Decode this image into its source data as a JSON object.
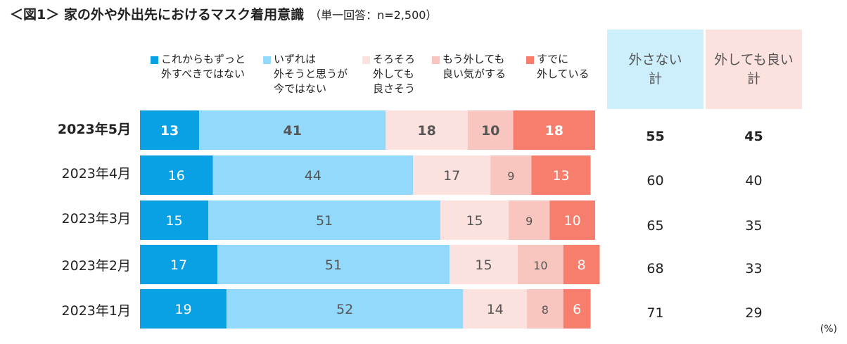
{
  "title": "＜図1＞ 家の外や外出先におけるマスク着用意識",
  "subtitle": "（単一回答：n=2,500）",
  "unit": "(%)",
  "colors": [
    "#0AA0E4",
    "#93D9FB",
    "#FCE2DF",
    "#F8C6BE",
    "#F77E6D"
  ],
  "summary_headers": [
    {
      "label": "外さない\n計",
      "color": "#CDEEFB"
    },
    {
      "label": "外しても良い\n計",
      "color": "#FCE2DF"
    }
  ],
  "chart_data": {
    "type": "bar",
    "orientation": "horizontal-stacked-100",
    "title": "家の外や外出先におけるマスク着用意識",
    "categories": [
      "2023年5月",
      "2023年4月",
      "2023年3月",
      "2023年2月",
      "2023年1月"
    ],
    "highlight_category": "2023年5月",
    "series": [
      {
        "name": "これからもずっと\n外すべきではない",
        "values": [
          13,
          16,
          15,
          17,
          19
        ]
      },
      {
        "name": "いずれは\n外そうと思うが\n今ではない",
        "values": [
          41,
          44,
          51,
          51,
          52
        ]
      },
      {
        "name": "そろそろ\n外しても\n良さそう",
        "values": [
          18,
          17,
          15,
          15,
          14
        ]
      },
      {
        "name": "もう外しても\n良い気がする",
        "values": [
          10,
          9,
          9,
          10,
          8
        ]
      },
      {
        "name": "すでに\n外している",
        "values": [
          18,
          13,
          10,
          8,
          6
        ]
      }
    ],
    "totals": {
      "not_remove": [
        55,
        60,
        65,
        68,
        71
      ],
      "may_remove": [
        45,
        40,
        35,
        33,
        29
      ]
    },
    "xlim": [
      0,
      100
    ],
    "unit": "%"
  }
}
